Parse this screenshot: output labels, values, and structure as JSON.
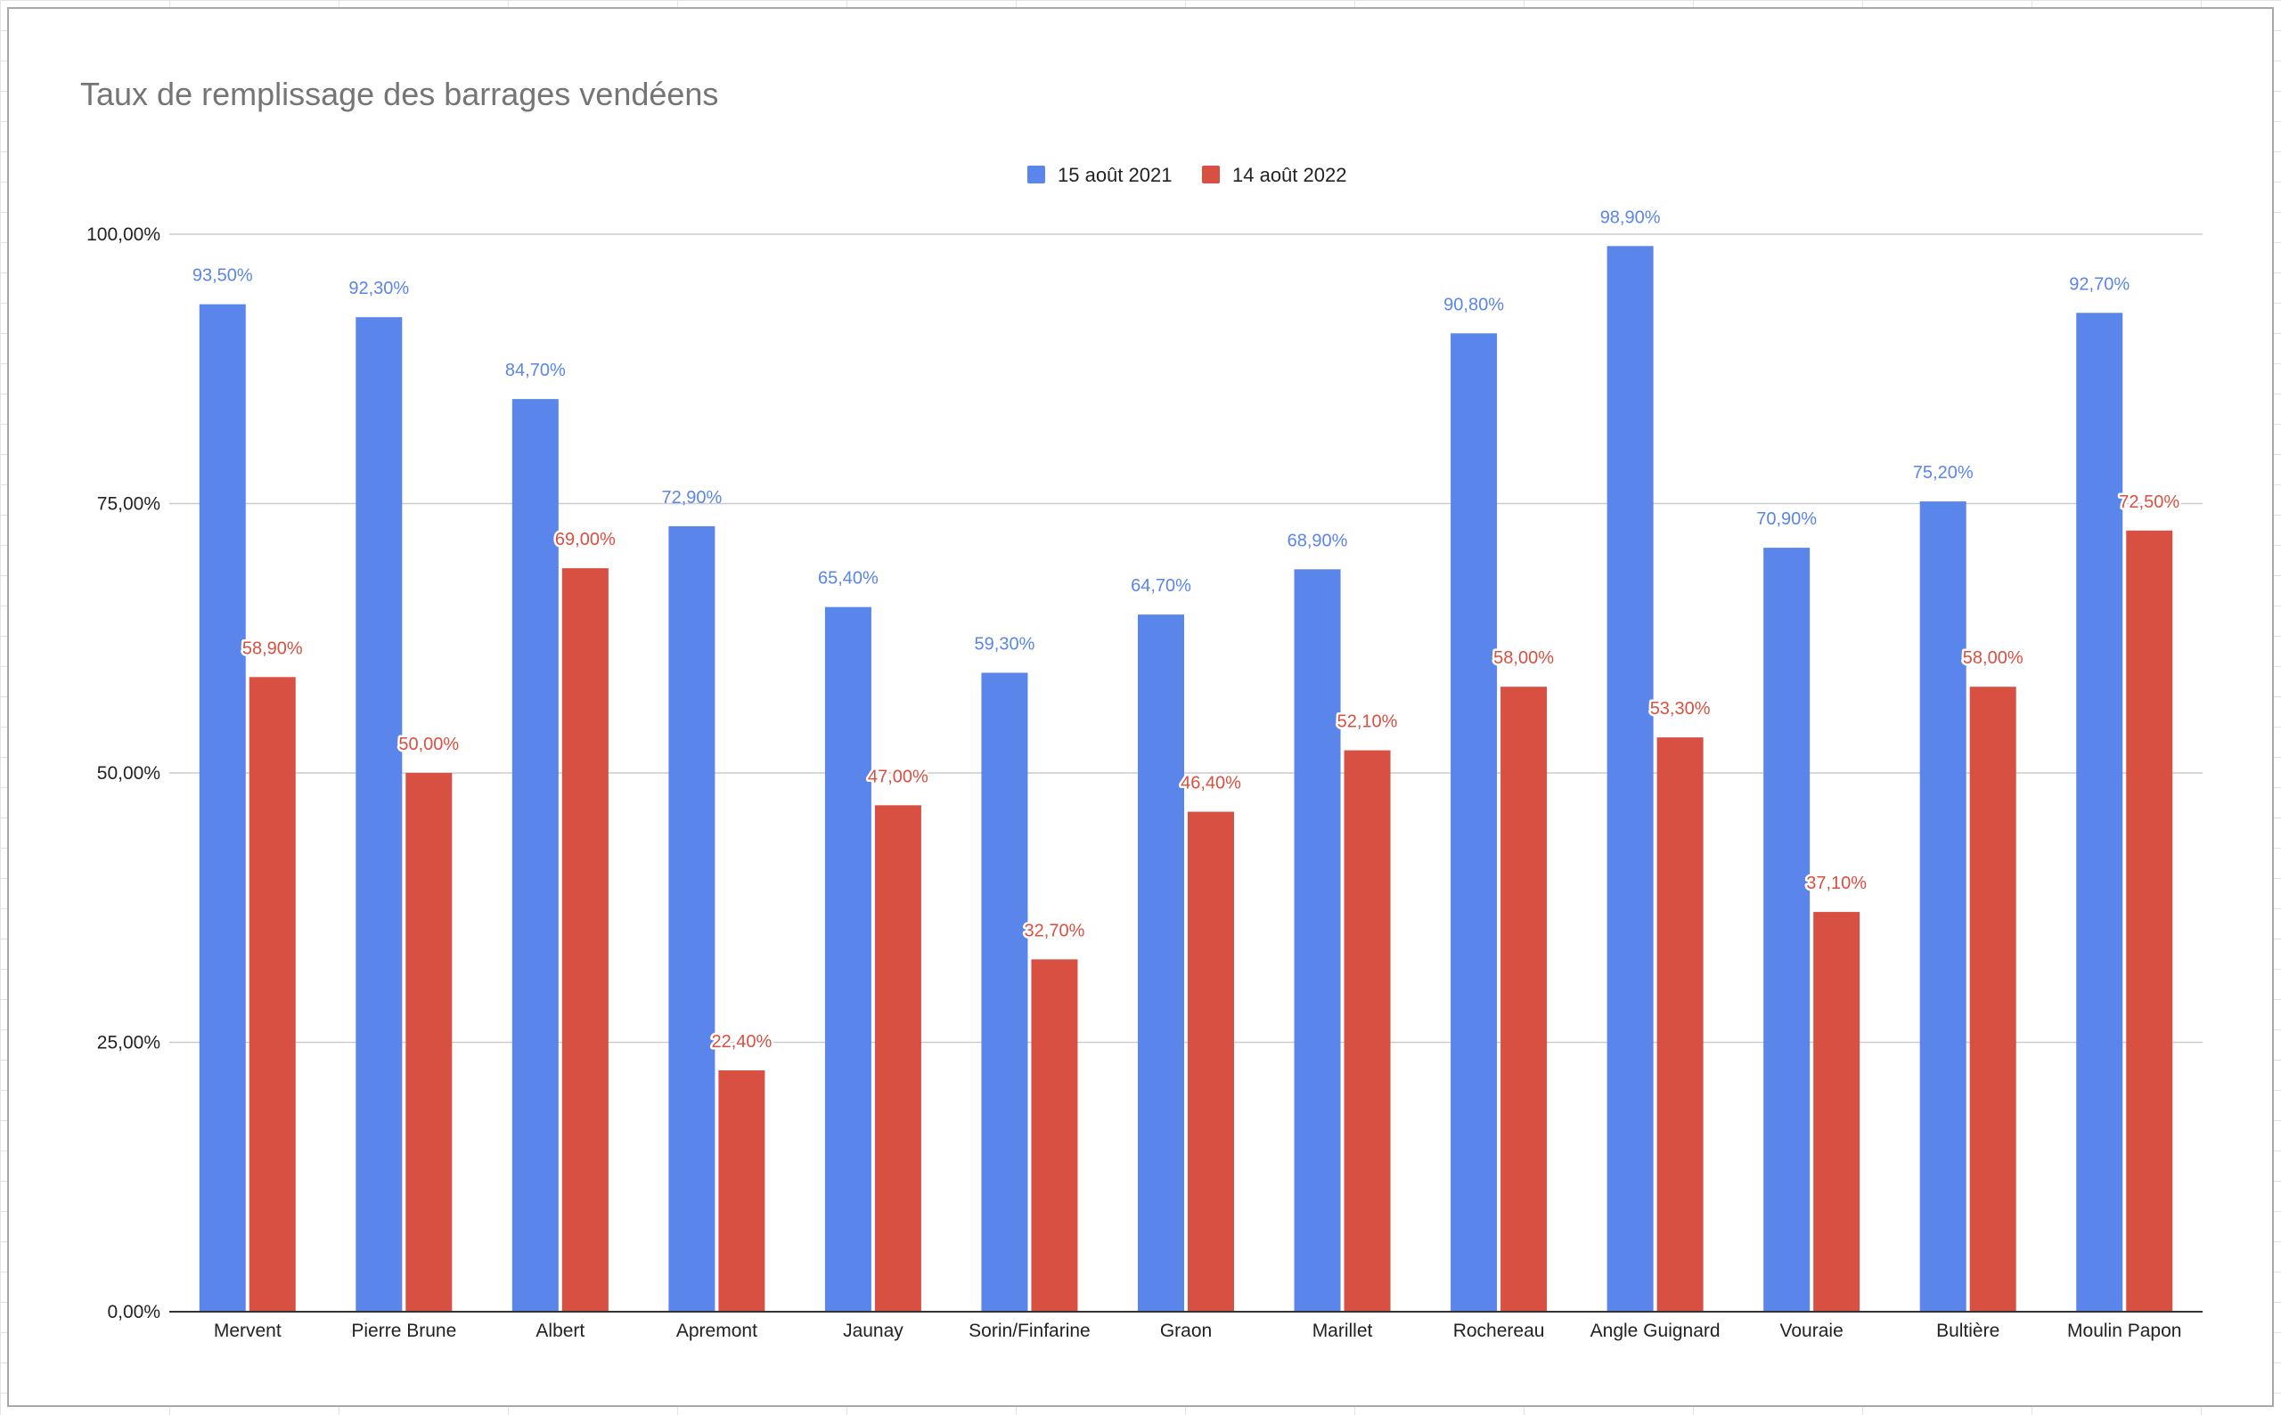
{
  "chart_data": {
    "type": "bar",
    "title": "Taux de remplissage des barrages vendéens",
    "xlabel": "",
    "ylabel": "",
    "ylim": [
      0,
      100
    ],
    "yticks": [
      0,
      25,
      50,
      75,
      100
    ],
    "ytick_labels": [
      "0,00%",
      "25,00%",
      "50,00%",
      "75,00%",
      "100,00%"
    ],
    "grid": true,
    "legend_position": "top-center",
    "categories": [
      "Mervent",
      "Pierre Brune",
      "Albert",
      "Apremont",
      "Jaunay",
      "Sorin/Finfarine",
      "Graon",
      "Marillet",
      "Rochereau",
      "Angle Guignard",
      "Vouraie",
      "Bultière",
      "Moulin Papon"
    ],
    "series": [
      {
        "name": "15 août 2021",
        "color": "#5a85ea",
        "values": [
          93.5,
          92.3,
          84.7,
          72.9,
          65.4,
          59.3,
          64.7,
          68.9,
          90.8,
          98.9,
          70.9,
          75.2,
          92.7
        ],
        "labels": [
          "93,50%",
          "92,30%",
          "84,70%",
          "72,90%",
          "65,40%",
          "59,30%",
          "64,70%",
          "68,90%",
          "90,80%",
          "98,90%",
          "70,90%",
          "75,20%",
          "92,70%"
        ]
      },
      {
        "name": "14 août 2022",
        "color": "#d85041",
        "values": [
          58.9,
          50.0,
          69.0,
          22.4,
          47.0,
          32.7,
          46.4,
          52.1,
          58.0,
          53.3,
          37.1,
          58.0,
          72.5
        ],
        "labels": [
          "58,90%",
          "50,00%",
          "69,00%",
          "22,40%",
          "47,00%",
          "32,70%",
          "46,40%",
          "52,10%",
          "58,00%",
          "53,30%",
          "37,10%",
          "58,00%",
          "72,50%"
        ]
      }
    ]
  }
}
